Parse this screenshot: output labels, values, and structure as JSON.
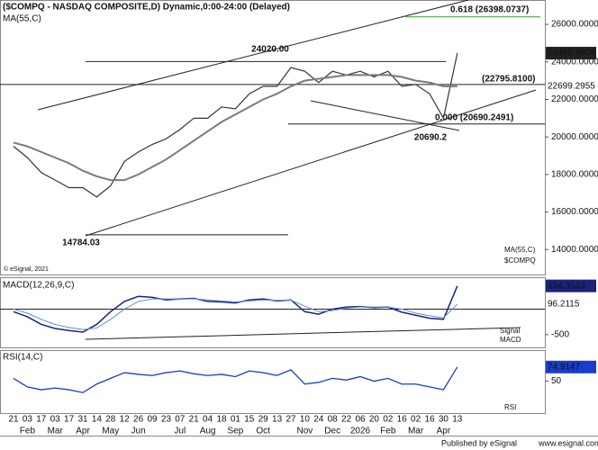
{
  "chart_data": {
    "type": "line",
    "title": "($COMPQ - NASDAQ COMPOSITE,D) Dynamic,0:00-24:00 (Delayed)",
    "ma_label": "MA(55,C)",
    "copyright": "© eSignal, 2021",
    "categories": [
      "21",
      "03",
      "17",
      "03",
      "17",
      "31",
      "14",
      "28",
      "12",
      "26",
      "09",
      "23",
      "07",
      "21",
      "04",
      "18",
      "01",
      "15",
      "29",
      "13",
      "27",
      "10",
      "24",
      "08",
      "22",
      "06",
      "20",
      "02",
      "16",
      "02",
      "16",
      "30",
      "13"
    ],
    "months": [
      null,
      "Feb",
      null,
      "Mar",
      null,
      "Apr",
      null,
      "May",
      null,
      "Jun",
      null,
      null,
      "Jul",
      null,
      "Aug",
      null,
      "Sep",
      null,
      "Oct",
      null,
      null,
      "Nov",
      null,
      "Dec",
      null,
      "2026",
      null,
      "Feb",
      null,
      "Mar",
      null,
      "Apr",
      null
    ],
    "series": [
      {
        "name": "$COMPQ",
        "color": "#333333",
        "values": [
          19500,
          18900,
          18100,
          17700,
          17300,
          17300,
          16800,
          17400,
          18700,
          19200,
          19600,
          19900,
          20400,
          21000,
          21000,
          21600,
          21500,
          22300,
          22700,
          22700,
          23700,
          23500,
          22900,
          23500,
          23300,
          23500,
          23200,
          23500,
          22700,
          22800,
          22300,
          21000,
          24468.4804
        ]
      },
      {
        "name": "MA(55,C)",
        "color": "#7a7a7a",
        "values": [
          19700,
          19500,
          19200,
          18900,
          18600,
          18200,
          17900,
          17700,
          17700,
          18000,
          18400,
          18800,
          19300,
          19800,
          20300,
          20800,
          21200,
          21600,
          22000,
          22300,
          22700,
          23000,
          23100,
          23200,
          23300,
          23300,
          23300,
          23300,
          23200,
          23000,
          22900,
          22700,
          22699.2955
        ]
      }
    ],
    "ylim": [
      12670,
      27300
    ],
    "yticks": [
      {
        "value": 14000,
        "label": "14000.0000"
      },
      {
        "value": 16000,
        "label": "16000.0000"
      },
      {
        "value": 18000,
        "label": "18000.0000"
      },
      {
        "value": 20000,
        "label": "20000.0000"
      },
      {
        "value": 22000,
        "label": "22000.0000"
      },
      {
        "value": 24000,
        "label": "24000.0000"
      },
      {
        "value": 26000,
        "label": "26000.0000"
      }
    ],
    "last_value": 24468.4804,
    "ma_last_value": 22699.2955,
    "annotations": [
      {
        "label": "0.618 (26398.0737)",
        "value": 26398.0737
      },
      {
        "label": "24020.00",
        "value": 24020
      },
      {
        "label": "(22795.8100)",
        "value": 22795.81
      },
      {
        "label": "0.000 (20690.2491)",
        "value": 20690.2491
      },
      {
        "label": "20690.2",
        "value": 20690.2
      },
      {
        "label": "14784.03",
        "value": 14784.03
      }
    ],
    "macd": {
      "title": "MACD(12,26,9,C)",
      "ylim": [
        -750,
        607
      ],
      "yticks": [
        -500
      ],
      "series": [
        {
          "name": "MACD",
          "color": "#1a237e",
          "values": [
            -50,
            -150,
            -300,
            -380,
            -420,
            -450,
            -300,
            -50,
            150,
            250,
            230,
            180,
            200,
            210,
            150,
            140,
            120,
            180,
            200,
            160,
            180,
            -50,
            -100,
            0,
            40,
            50,
            30,
            40,
            -60,
            -120,
            -180,
            -200,
            454.3543
          ]
        },
        {
          "name": "Signal",
          "color": "#5f8fd6",
          "values": [
            0,
            -80,
            -200,
            -300,
            -360,
            -400,
            -370,
            -200,
            0,
            150,
            200,
            200,
            200,
            200,
            180,
            160,
            140,
            160,
            180,
            170,
            175,
            60,
            -50,
            -30,
            20,
            40,
            40,
            40,
            0,
            -80,
            -130,
            -170,
            96.2115
          ]
        }
      ]
    },
    "rsi": {
      "title": "RSI(14,C)",
      "ylim": [
        -6,
        103
      ],
      "yticks": [
        50
      ],
      "series": [
        {
          "name": "RSI",
          "color": "#1a3cc8",
          "values": [
            55,
            40,
            35,
            38,
            35,
            30,
            45,
            55,
            65,
            62,
            60,
            65,
            68,
            63,
            60,
            62,
            58,
            68,
            65,
            60,
            70,
            45,
            48,
            55,
            52,
            58,
            50,
            55,
            45,
            45,
            40,
            35,
            74.9147
          ]
        }
      ]
    },
    "footer": "Published by eSignal",
    "footer_site": "www.esignal.com"
  }
}
